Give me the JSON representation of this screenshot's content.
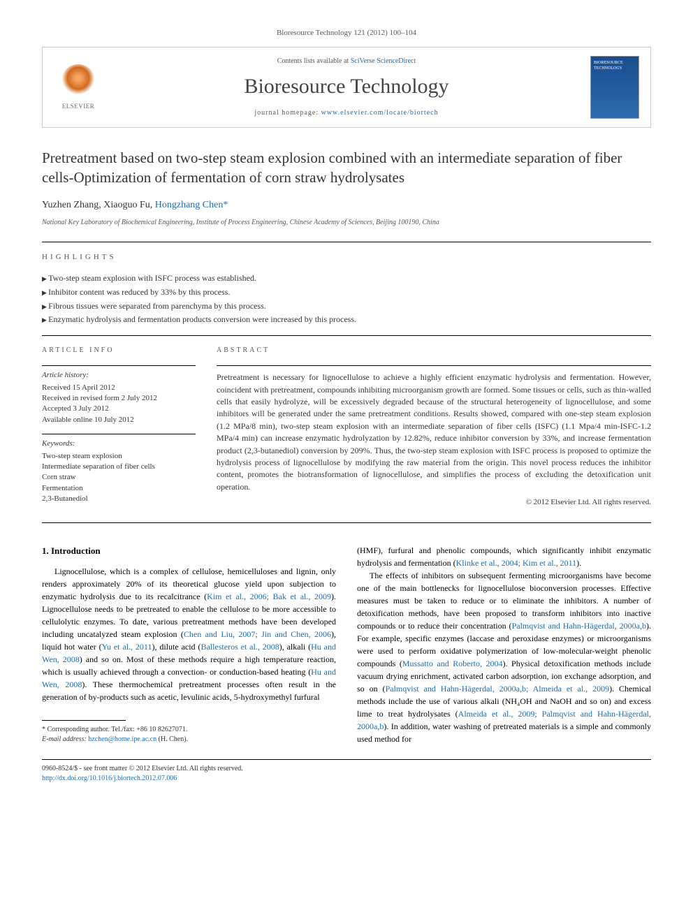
{
  "citation": "Bioresource Technology 121 (2012) 100–104",
  "header": {
    "contents_prefix": "Contents lists available at ",
    "contents_link": "SciVerse ScienceDirect",
    "journal_name": "Bioresource Technology",
    "homepage_prefix": "journal homepage: ",
    "homepage_link": "www.elsevier.com/locate/biortech",
    "elsevier_label": "ELSEVIER",
    "cover_title": "BIORESOURCE TECHNOLOGY"
  },
  "title": "Pretreatment based on two-step steam explosion combined with an intermediate separation of fiber cells-Optimization of fermentation of corn straw hydrolysates",
  "authors": {
    "a1": "Yuzhen Zhang",
    "a2": "Xiaoguo Fu",
    "a3": "Hongzhang Chen",
    "corr_mark": "*"
  },
  "affiliation": "National Key Laboratory of Biochemical Engineering, Institute of Process Engineering, Chinese Academy of Sciences, Beijing 100190, China",
  "highlights": {
    "label": "HIGHLIGHTS",
    "h1": "Two-step steam explosion with ISFC process was established.",
    "h2": "Inhibitor content was reduced by 33% by this process.",
    "h3": "Fibrous tissues were separated from parenchyma by this process.",
    "h4": "Enzymatic hydrolysis and fermentation products conversion were increased by this process."
  },
  "article_info": {
    "label": "ARTICLE INFO",
    "history_label": "Article history:",
    "received": "Received 15 April 2012",
    "revised": "Received in revised form 2 July 2012",
    "accepted": "Accepted 3 July 2012",
    "online": "Available online 10 July 2012",
    "keywords_label": "Keywords:",
    "k1": "Two-step steam explosion",
    "k2": "Intermediate separation of fiber cells",
    "k3": "Corn straw",
    "k4": "Fermentation",
    "k5": "2,3-Butanediol"
  },
  "abstract": {
    "label": "ABSTRACT",
    "text": "Pretreatment is necessary for lignocellulose to achieve a highly efficient enzymatic hydrolysis and fermentation. However, coincident with pretreatment, compounds inhibiting microorganism growth are formed. Some tissues or cells, such as thin-walled cells that easily hydrolyze, will be excessively degraded because of the structural heterogeneity of lignocellulose, and some inhibitors will be generated under the same pretreatment conditions. Results showed, compared with one-step steam explosion (1.2 MPa/8 min), two-step steam explosion with an intermediate separation of fiber cells (ISFC) (1.1 Mpa/4 min-ISFC-1.2 MPa/4 min) can increase enzymatic hydrolyzation by 12.82%, reduce inhibitor conversion by 33%, and increase fermentation product (2,3-butanediol) conversion by 209%. Thus, the two-step steam explosion with ISFC process is proposed to optimize the hydrolysis process of lignocellulose by modifying the raw material from the origin. This novel process reduces the inhibitor content, promotes the biotransformation of lignocellulose, and simplifies the process of excluding the detoxification unit operation.",
    "copyright": "© 2012 Elsevier Ltd. All rights reserved."
  },
  "body": {
    "intro_heading": "1. Introduction",
    "p1a": "Lignocellulose, which is a complex of cellulose, hemicelluloses and lignin, only renders approximately 20% of its theoretical glucose yield upon subjection to enzymatic hydrolysis due to its recalcitrance (",
    "c1": "Kim et al., 2006; Bak et al., 2009",
    "p1b": "). Lignocellulose needs to be pretreated to enable the cellulose to be more accessible to cellulolytic enzymes. To date, various pretreatment methods have been developed including uncatalyzed steam explosion (",
    "c2": "Chen and Liu, 2007; Jin and Chen, 2006",
    "p1c": "), liquid hot water (",
    "c3": "Yu et al., 2011",
    "p1d": "), dilute acid (",
    "c4": "Ballesteros et al., 2008",
    "p1e": "), alkali (",
    "c5": "Hu and Wen, 2008",
    "p1f": ") and so on. Most of these methods require a high temperature reaction, which is usually achieved through a convection- or conduction-based heating (",
    "c6": "Hu and Wen, 2008",
    "p1g": "). These thermochemical pretreatment processes often result in the generation of by-products such as acetic, levulinic acids, 5-hydroxymethyl furfural",
    "p2a": "(HMF), furfural and phenolic compounds, which significantly inhibit enzymatic hydrolysis and fermentation (",
    "c7": "Klinke et al., 2004; Kim et al., 2011",
    "p2b": ").",
    "p3a": "The effects of inhibitors on subsequent fermenting microorganisms have become one of the main bottlenecks for lignocellulose bioconversion processes. Effective measures must be taken to reduce or to eliminate the inhibitors. A number of detoxification methods, have been proposed to transform inhibitors into inactive compounds or to reduce their concentration (",
    "c8": "Palmqvist and Hahn-Hägerdal, 2000a,b",
    "p3b": "). For example, specific enzymes (laccase and peroxidase enzymes) or microorganisms were used to perform oxidative polymerization of low-molecular-weight phenolic compounds (",
    "c9": "Mussatto and Roberto, 2004",
    "p3c": "). Physical detoxification methods include vacuum drying enrichment, activated carbon adsorption, ion exchange adsorption, and so on (",
    "c10": "Palmqvist and Hahn-Hägerdal, 2000a,b; Almeida et al., 2009",
    "p3d": "). Chemical methods include the use of various alkali (NH₄OH and NaOH and so on) and excess lime to treat hydrolysates (",
    "c11": "Almeida et al., 2009; Palmqvist and Hahn-Hägerdal, 2000a,b",
    "p3e": "). In addition, water washing of pretreated materials is a simple and commonly used method for"
  },
  "footnote": {
    "corr": "* Corresponding author. Tel./fax: +86 10 82627071.",
    "email_label": "E-mail address: ",
    "email": "hzchen@home.ipe.ac.cn",
    "email_suffix": " (H. Chen)."
  },
  "footer": {
    "line1": "0960-8524/$ - see front matter © 2012 Elsevier Ltd. All rights reserved.",
    "line2": "http://dx.doi.org/10.1016/j.biortech.2012.07.006"
  }
}
